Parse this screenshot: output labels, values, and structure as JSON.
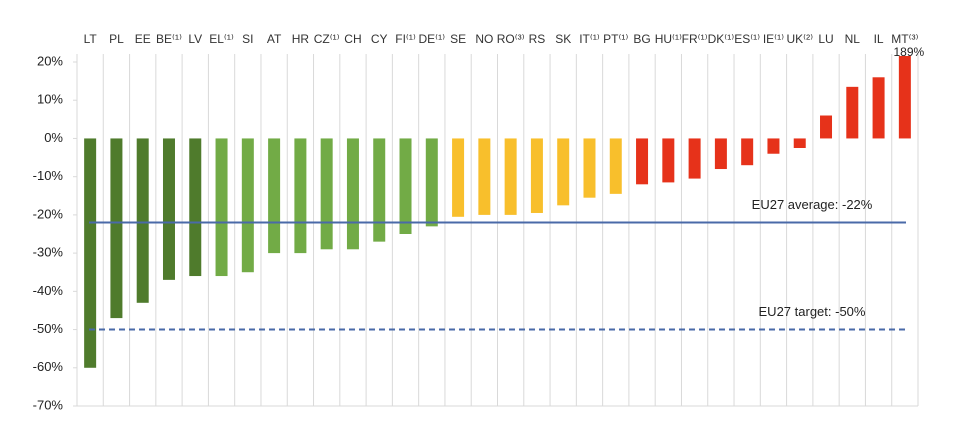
{
  "chart_data": {
    "type": "bar",
    "categories": [
      "LT",
      "PL",
      "EE",
      "BE⁽¹⁾",
      "LV",
      "EL⁽¹⁾",
      "SI",
      "AT",
      "HR",
      "CZ⁽¹⁾",
      "CH",
      "CY",
      "FI⁽¹⁾",
      "DE⁽¹⁾",
      "SE",
      "NO",
      "RO⁽³⁾",
      "RS",
      "SK",
      "IT⁽¹⁾",
      "PT⁽¹⁾",
      "BG",
      "HU⁽¹⁾",
      "FR⁽¹⁾",
      "DK⁽¹⁾",
      "ES⁽¹⁾",
      "IE⁽¹⁾",
      "UK⁽²⁾",
      "LU",
      "NL",
      "IL",
      "MT⁽³⁾"
    ],
    "values": [
      -60,
      -47,
      -43,
      -37,
      -36,
      -36,
      -35,
      -30,
      -30,
      -29,
      -29,
      -27,
      -25,
      -23,
      -20.5,
      -20,
      -20,
      -19.5,
      -17.5,
      -15.5,
      -14.5,
      -12,
      -11.5,
      -10.5,
      -8,
      -7,
      -4,
      -2.5,
      6,
      13.5,
      16,
      189
    ],
    "value_labels": [
      null,
      null,
      null,
      null,
      null,
      null,
      null,
      null,
      null,
      null,
      null,
      null,
      null,
      null,
      null,
      null,
      null,
      null,
      null,
      null,
      null,
      null,
      null,
      null,
      null,
      null,
      null,
      null,
      null,
      null,
      null,
      "189%"
    ],
    "colors": [
      "#4f7b2c",
      "#4f7b2c",
      "#4f7b2c",
      "#4f7b2c",
      "#4f7b2c",
      "#72ab46",
      "#72ab46",
      "#72ab46",
      "#72ab46",
      "#72ab46",
      "#72ab46",
      "#72ab46",
      "#72ab46",
      "#72ab46",
      "#f8bf2c",
      "#f8bf2c",
      "#f8bf2c",
      "#f8bf2c",
      "#f8bf2c",
      "#f8bf2c",
      "#f8bf2c",
      "#e6321a",
      "#e6321a",
      "#e6321a",
      "#e6321a",
      "#e6321a",
      "#e6321a",
      "#e6321a",
      "#e6321a",
      "#e6321a",
      "#e6321a",
      "#e6321a"
    ],
    "ylim": [
      -70,
      20
    ],
    "yticks": [
      {
        "value": 20,
        "label": "20%"
      },
      {
        "value": 10,
        "label": "10%"
      },
      {
        "value": 0,
        "label": "0%"
      },
      {
        "value": -10,
        "label": "-10%"
      },
      {
        "value": -20,
        "label": "-20%"
      },
      {
        "value": -30,
        "label": "-30%"
      },
      {
        "value": -40,
        "label": "-40%"
      },
      {
        "value": -50,
        "label": "-50%"
      },
      {
        "value": -60,
        "label": "-60%"
      },
      {
        "value": -70,
        "label": "-70%"
      }
    ],
    "reference_lines": [
      {
        "value": -22,
        "label": "EU27 average: -22%",
        "color": "#4a6aa8",
        "dashed": false
      },
      {
        "value": -50,
        "label": "EU27 target: -50%",
        "color": "#4a6aa8",
        "dashed": true
      }
    ]
  }
}
